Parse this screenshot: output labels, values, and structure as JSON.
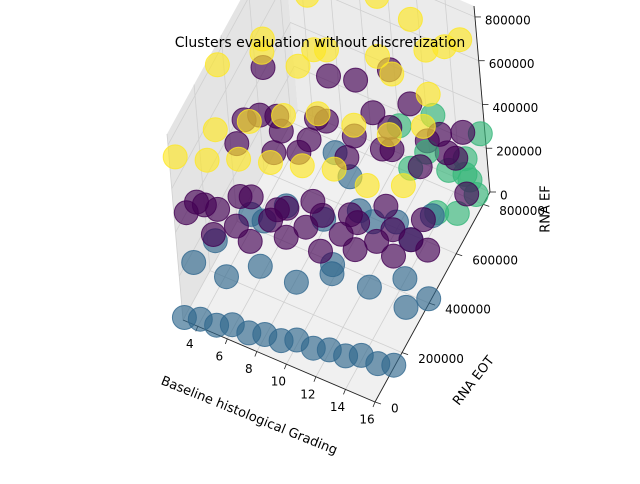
{
  "chart_data": {
    "type": "scatter",
    "projection": "3d",
    "title": "Clusters evaluation without discretization",
    "xlabel": "Baseline histological Grading",
    "ylabel": "RNA EOT",
    "zlabel": "RNA EF",
    "xticks": [
      "4",
      "6",
      "8",
      "10",
      "12",
      "14",
      "16"
    ],
    "yticks": [
      "0",
      "200000",
      "400000",
      "600000",
      "800000"
    ],
    "zticks": [
      "0",
      "200000",
      "400000",
      "600000",
      "800000"
    ],
    "xlim": [
      3,
      16
    ],
    "ylim": [
      0,
      850000
    ],
    "zlim": [
      0,
      850000
    ],
    "grid": true,
    "colors": {
      "cluster_0": "#440154",
      "cluster_1": "#31688e",
      "cluster_2": "#35b779",
      "cluster_3": "#fde725"
    },
    "series": [
      {
        "color_key": "cluster_3",
        "points": [
          [
            3,
            40000,
            700000
          ],
          [
            5,
            60000,
            720000
          ],
          [
            7,
            80000,
            760000
          ],
          [
            9,
            100000,
            780000
          ],
          [
            11,
            120000,
            800000
          ],
          [
            13,
            140000,
            820000
          ],
          [
            15,
            160000,
            780000
          ],
          [
            4,
            220000,
            650000
          ],
          [
            6,
            260000,
            700000
          ],
          [
            8,
            300000,
            740000
          ],
          [
            10,
            340000,
            760000
          ],
          [
            12,
            380000,
            720000
          ],
          [
            14,
            420000,
            690000
          ],
          [
            16,
            460000,
            740000
          ],
          [
            5,
            480000,
            800000
          ],
          [
            9,
            520000,
            820000
          ],
          [
            13,
            560000,
            780000
          ],
          [
            15,
            600000,
            700000
          ],
          [
            7,
            620000,
            650000
          ],
          [
            11,
            660000,
            690000
          ],
          [
            14,
            700000,
            760000
          ],
          [
            16,
            740000,
            820000
          ],
          [
            10,
            780000,
            800000
          ],
          [
            12,
            800000,
            730000
          ],
          [
            6,
            700000,
            780000
          ],
          [
            8,
            420000,
            830000
          ],
          [
            16,
            300000,
            650000
          ],
          [
            4,
            560000,
            620000
          ],
          [
            14,
            820000,
            640000
          ],
          [
            3,
            360000,
            760000
          ]
        ]
      },
      {
        "color_key": "cluster_2",
        "points": [
          [
            14,
            780000,
            120000
          ],
          [
            15,
            800000,
            180000
          ],
          [
            16,
            760000,
            90000
          ],
          [
            13,
            740000,
            220000
          ],
          [
            15,
            820000,
            60000
          ],
          [
            16,
            700000,
            250000
          ],
          [
            14,
            680000,
            40000
          ],
          [
            12,
            720000,
            140000
          ],
          [
            16,
            820000,
            300000
          ],
          [
            13,
            800000,
            320000
          ],
          [
            11,
            760000,
            260000
          ],
          [
            15,
            720000,
            20000
          ]
        ]
      },
      {
        "color_key": "cluster_1",
        "points": [
          [
            3,
            10000,
            0
          ],
          [
            4,
            20000,
            10000
          ],
          [
            5,
            30000,
            0
          ],
          [
            6,
            40000,
            20000
          ],
          [
            7,
            50000,
            0
          ],
          [
            8,
            60000,
            10000
          ],
          [
            9,
            70000,
            0
          ],
          [
            10,
            80000,
            20000
          ],
          [
            11,
            90000,
            0
          ],
          [
            12,
            100000,
            10000
          ],
          [
            13,
            110000,
            0
          ],
          [
            14,
            120000,
            20000
          ],
          [
            15,
            130000,
            0
          ],
          [
            16,
            140000,
            10000
          ],
          [
            3,
            100000,
            150000
          ],
          [
            5,
            120000,
            120000
          ],
          [
            7,
            160000,
            180000
          ],
          [
            9,
            200000,
            120000
          ],
          [
            11,
            250000,
            160000
          ],
          [
            13,
            300000,
            100000
          ],
          [
            15,
            350000,
            140000
          ],
          [
            4,
            400000,
            60000
          ],
          [
            6,
            450000,
            100000
          ],
          [
            8,
            500000,
            40000
          ],
          [
            10,
            550000,
            80000
          ],
          [
            12,
            600000,
            30000
          ],
          [
            14,
            650000,
            60000
          ],
          [
            16,
            400000,
            20000
          ],
          [
            12,
            450000,
            200000
          ],
          [
            9,
            600000,
            150000
          ],
          [
            6,
            300000,
            200000
          ],
          [
            3,
            250000,
            80000
          ],
          [
            16,
            250000,
            150000
          ],
          [
            14,
            500000,
            120000
          ],
          [
            10,
            350000,
            60000
          ],
          [
            7,
            700000,
            90000
          ]
        ]
      },
      {
        "color_key": "cluster_0",
        "points": [
          [
            3,
            80000,
            400000
          ],
          [
            4,
            60000,
            500000
          ],
          [
            5,
            100000,
            450000
          ],
          [
            6,
            120000,
            380000
          ],
          [
            7,
            140000,
            520000
          ],
          [
            8,
            160000,
            420000
          ],
          [
            9,
            180000,
            480000
          ],
          [
            10,
            200000,
            400000
          ],
          [
            11,
            220000,
            460000
          ],
          [
            12,
            240000,
            380000
          ],
          [
            13,
            260000,
            440000
          ],
          [
            14,
            280000,
            360000
          ],
          [
            15,
            300000,
            420000
          ],
          [
            16,
            320000,
            380000
          ],
          [
            3,
            200000,
            300000
          ],
          [
            5,
            250000,
            340000
          ],
          [
            7,
            300000,
            280000
          ],
          [
            9,
            350000,
            320000
          ],
          [
            11,
            400000,
            260000
          ],
          [
            13,
            450000,
            300000
          ],
          [
            15,
            500000,
            240000
          ],
          [
            4,
            350000,
            440000
          ],
          [
            6,
            400000,
            400000
          ],
          [
            8,
            450000,
            460000
          ],
          [
            10,
            500000,
            380000
          ],
          [
            12,
            550000,
            420000
          ],
          [
            14,
            600000,
            340000
          ],
          [
            16,
            650000,
            380000
          ],
          [
            3,
            500000,
            350000
          ],
          [
            5,
            550000,
            300000
          ],
          [
            7,
            600000,
            360000
          ],
          [
            9,
            650000,
            280000
          ],
          [
            11,
            700000,
            320000
          ],
          [
            13,
            750000,
            260000
          ],
          [
            15,
            800000,
            300000
          ],
          [
            4,
            150000,
            250000
          ],
          [
            6,
            200000,
            220000
          ],
          [
            8,
            250000,
            240000
          ],
          [
            10,
            280000,
            200000
          ],
          [
            12,
            320000,
            220000
          ],
          [
            14,
            380000,
            180000
          ],
          [
            16,
            420000,
            220000
          ],
          [
            5,
            420000,
            520000
          ],
          [
            9,
            480000,
            540000
          ],
          [
            13,
            520000,
            480000
          ],
          [
            3,
            650000,
            420000
          ],
          [
            7,
            700000,
            440000
          ],
          [
            11,
            600000,
            500000
          ],
          [
            15,
            650000,
            460000
          ],
          [
            12,
            750000,
            400000
          ],
          [
            8,
            780000,
            360000
          ],
          [
            10,
            820000,
            420000
          ],
          [
            14,
            780000,
            200000
          ],
          [
            16,
            700000,
            160000
          ],
          [
            6,
            560000,
            220000
          ],
          [
            4,
            620000,
            260000
          ]
        ]
      }
    ]
  }
}
